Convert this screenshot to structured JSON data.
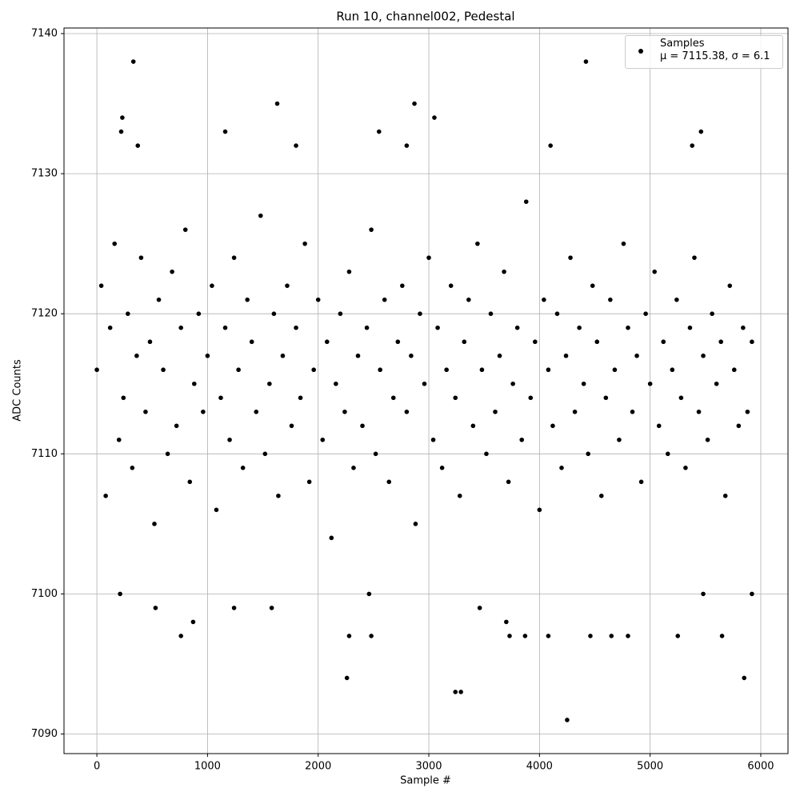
{
  "chart_data": {
    "type": "scatter",
    "title": "Run 10, channel002, Pedestal",
    "x_label": "Sample #",
    "y_label": "ADC Counts",
    "xlim": [
      -297,
      6246
    ],
    "ylim": [
      7088.6,
      7140.4
    ],
    "xticks": [
      0,
      1000,
      2000,
      3000,
      4000,
      5000,
      6000
    ],
    "yticks": [
      7090,
      7100,
      7110,
      7120,
      7130,
      7140
    ],
    "grid": true,
    "legend": "upper right",
    "series": [
      {
        "name": "Samples\nμ = 7115.38, σ = 6.1",
        "color": "#000000",
        "x": [
          0,
          40,
          80,
          120,
          160,
          200,
          240,
          280,
          320,
          360,
          400,
          440,
          480,
          520,
          560,
          600,
          640,
          680,
          720,
          760,
          800,
          840,
          880,
          920,
          960,
          1000,
          1040,
          1080,
          1120,
          1160,
          1200,
          1240,
          1280,
          1320,
          1360,
          1400,
          1440,
          1480,
          1520,
          1560,
          1600,
          1640,
          1680,
          1720,
          1760,
          1800,
          1840,
          1880,
          1920,
          1960,
          2000,
          2040,
          2080,
          2120,
          2160,
          2200,
          2240,
          2280,
          2320,
          2360,
          2400,
          2440,
          2480,
          2520,
          2560,
          2600,
          2640,
          2680,
          2720,
          2760,
          2800,
          2840,
          2880,
          2920,
          2960,
          3000,
          3040,
          3080,
          3120,
          3160,
          3200,
          3240,
          3280,
          3320,
          3360,
          3400,
          3440,
          3480,
          3520,
          3560,
          3600,
          3640,
          3680,
          3720,
          3760,
          3800,
          3840,
          3880,
          3920,
          3960,
          4000,
          4040,
          4080,
          4120,
          4160,
          4200,
          4240,
          4280,
          4320,
          4360,
          4400,
          4440,
          4480,
          4520,
          4560,
          4600,
          4640,
          4680,
          4720,
          4760,
          4800,
          4840,
          4880,
          4920,
          4960,
          5000,
          5040,
          5080,
          5120,
          5160,
          5200,
          5240,
          5280,
          5320,
          5360,
          5400,
          5440,
          5480,
          5520,
          5560,
          5600,
          5640,
          5680,
          5720,
          5760,
          5800,
          5840,
          5880,
          5920,
          330,
          4420,
          4250,
          2260,
          5850,
          3240,
          3290,
          1630,
          2870,
          230,
          3050,
          220,
          1160,
          2550,
          5460,
          870,
          760,
          2280,
          2480,
          3730,
          3870,
          4080,
          4460,
          4650,
          4800,
          5250,
          5650,
          3700,
          210,
          530,
          1240,
          1580,
          3460,
          5920,
          5480,
          2460,
          370,
          1800,
          4100,
          5380,
          2800
        ],
        "values": [
          7116,
          7122,
          7107,
          7119,
          7125,
          7111,
          7114,
          7120,
          7109,
          7117,
          7124,
          7113,
          7118,
          7105,
          7121,
          7116,
          7110,
          7123,
          7112,
          7119,
          7126,
          7108,
          7115,
          7120,
          7113,
          7117,
          7122,
          7106,
          7114,
          7119,
          7111,
          7124,
          7116,
          7109,
          7121,
          7118,
          7113,
          7127,
          7110,
          7115,
          7120,
          7107,
          7117,
          7122,
          7112,
          7119,
          7114,
          7125,
          7108,
          7116,
          7121,
          7111,
          7118,
          7104,
          7115,
          7120,
          7113,
          7123,
          7109,
          7117,
          7112,
          7119,
          7126,
          7110,
          7116,
          7121,
          7108,
          7114,
          7118,
          7122,
          7113,
          7117,
          7105,
          7120,
          7115,
          7124,
          7111,
          7119,
          7109,
          7116,
          7122,
          7114,
          7107,
          7118,
          7121,
          7112,
          7125,
          7116,
          7110,
          7120,
          7113,
          7117,
          7123,
          7108,
          7115,
          7119,
          7111,
          7128,
          7114,
          7118,
          7106,
          7121,
          7116,
          7112,
          7120,
          7109,
          7117,
          7124,
          7113,
          7119,
          7115,
          7110,
          7122,
          7118,
          7107,
          7114,
          7121,
          7116,
          7111,
          7125,
          7119,
          7113,
          7117,
          7108,
          7120,
          7115,
          7123,
          7112,
          7118,
          7110,
          7116,
          7121,
          7114,
          7109,
          7119,
          7124,
          7113,
          7117,
          7111,
          7120,
          7115,
          7118,
          7107,
          7122,
          7116,
          7112,
          7119,
          7113,
          7118,
          7138,
          7138,
          7091,
          7094,
          7094,
          7093,
          7093,
          7135,
          7135,
          7134,
          7134,
          7133,
          7133,
          7133,
          7133,
          7098,
          7097,
          7097,
          7097,
          7097,
          7097,
          7097,
          7097,
          7097,
          7097,
          7097,
          7097,
          7098,
          7100,
          7099,
          7099,
          7099,
          7099,
          7100,
          7100,
          7100,
          7132,
          7132,
          7132,
          7132,
          7132
        ]
      }
    ]
  }
}
